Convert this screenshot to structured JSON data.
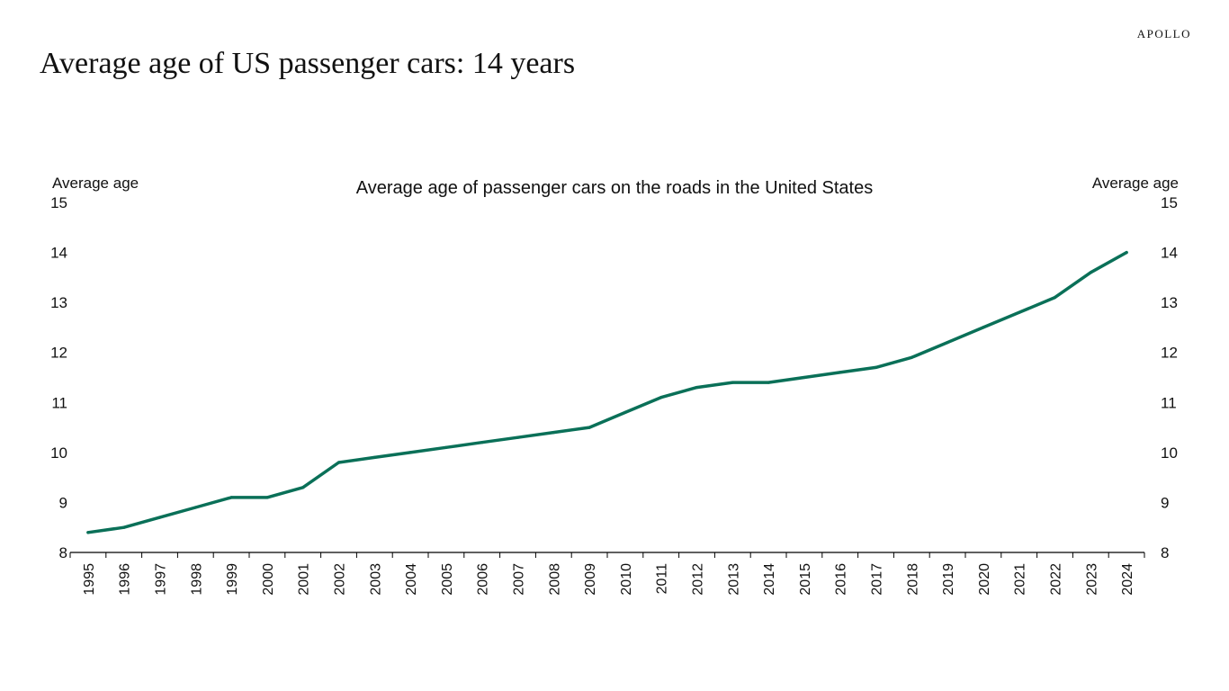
{
  "brand": "APOLLO",
  "headline": "Average age of US passenger cars: 14 years",
  "colors": {
    "line": "#0a7058",
    "axis": "#000000",
    "text": "#111111"
  },
  "chart_data": {
    "type": "line",
    "title": "Average age of passenger cars on the roads in the United States",
    "ylabel_left": "Average age",
    "ylabel_right": "Average age",
    "ylim": [
      8,
      15
    ],
    "yticks": [
      8,
      9,
      10,
      11,
      12,
      13,
      14,
      15
    ],
    "grid": false,
    "legend": "none",
    "categories": [
      "1995",
      "1996",
      "1997",
      "1998",
      "1999",
      "2000",
      "2001",
      "2002",
      "2003",
      "2004",
      "2005",
      "2006",
      "2007",
      "2008",
      "2009",
      "2010",
      "2011",
      "2012",
      "2013",
      "2014",
      "2015",
      "2016",
      "2017",
      "2018",
      "2019",
      "2020",
      "2021",
      "2022",
      "2023",
      "2024"
    ],
    "series": [
      {
        "values": [
          8.4,
          8.5,
          8.7,
          8.9,
          9.1,
          9.1,
          9.3,
          9.8,
          9.9,
          10.0,
          10.1,
          10.2,
          10.3,
          10.4,
          10.5,
          10.8,
          11.1,
          11.3,
          11.4,
          11.4,
          11.5,
          11.6,
          11.7,
          11.9,
          12.2,
          12.5,
          12.8,
          13.1,
          13.6,
          14.0
        ]
      }
    ]
  }
}
